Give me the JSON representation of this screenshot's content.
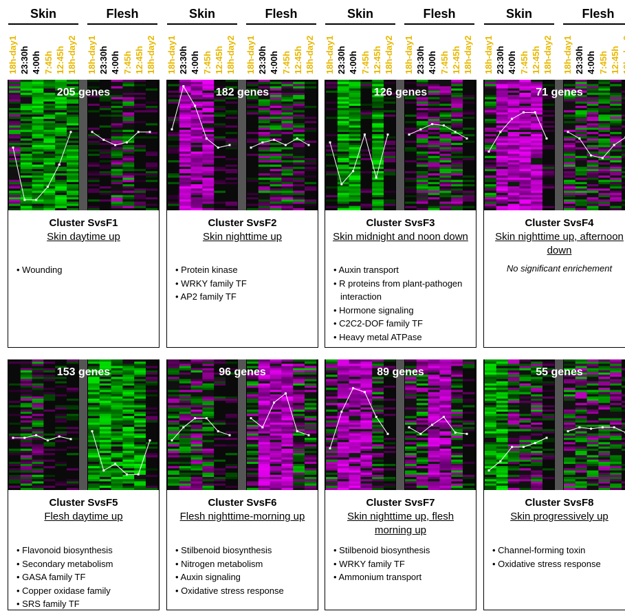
{
  "header": {
    "groups": [
      {
        "skin": "Skin",
        "flesh": "Flesh"
      },
      {
        "skin": "Skin",
        "flesh": "Flesh"
      },
      {
        "skin": "Skin",
        "flesh": "Flesh"
      },
      {
        "skin": "Skin",
        "flesh": "Flesh"
      }
    ],
    "timepoints": [
      "18h-day1",
      "23:30h",
      "4:00h",
      "7:45h",
      "12:45h",
      "18h-day2"
    ],
    "timepoint_colors": [
      "gold",
      "black",
      "black",
      "gold",
      "gold",
      "gold"
    ]
  },
  "colors": {
    "up": "#e040fb",
    "down": "#22ee22",
    "profile_line": "#ffffff",
    "separator": "#555555",
    "highlight_time": "#e8b800"
  },
  "clusters": [
    {
      "gene_count": "205 genes",
      "title": "Cluster SvsF1",
      "description": "Skin daytime up",
      "terms": [
        "Wounding"
      ],
      "note": "",
      "skin_profile": [
        0.52,
        0.92,
        0.92,
        0.82,
        0.65,
        0.4
      ],
      "flesh_profile": [
        0.4,
        0.46,
        0.5,
        0.48,
        0.4,
        0.4
      ],
      "skin_shade": [
        "mix",
        "green",
        "green",
        "green",
        "green",
        "green"
      ],
      "flesh_shade": [
        "dark",
        "dark",
        "mix",
        "mix",
        "dark",
        "dark"
      ]
    },
    {
      "gene_count": "182 genes",
      "title": "Cluster SvsF2",
      "description": "Skin nighttime up",
      "terms": [
        "Protein kinase",
        "WRKY family TF",
        "AP2 family TF"
      ],
      "note": "",
      "skin_profile": [
        0.38,
        0.05,
        0.2,
        0.45,
        0.52,
        0.5
      ],
      "flesh_profile": [
        0.52,
        0.48,
        0.46,
        0.5,
        0.45,
        0.5
      ],
      "skin_shade": [
        "dark",
        "magenta",
        "magenta",
        "magenta",
        "dark",
        "dark"
      ],
      "flesh_shade": [
        "dark",
        "mix",
        "mix",
        "mix",
        "mix",
        "dark"
      ]
    },
    {
      "gene_count": "126 genes",
      "title": "Cluster SvsF3",
      "description": "Skin midnight and noon down",
      "terms": [
        "Auxin transport",
        "R proteins from plant-pathogen interaction",
        "Hormone signaling",
        "C2C2-DOF family TF",
        "Heavy metal ATPase"
      ],
      "note": "",
      "skin_profile": [
        0.48,
        0.8,
        0.7,
        0.42,
        0.75,
        0.42
      ],
      "flesh_profile": [
        0.42,
        0.38,
        0.34,
        0.35,
        0.4,
        0.45
      ],
      "skin_shade": [
        "dark",
        "green",
        "green",
        "dark",
        "green",
        "dark"
      ],
      "flesh_shade": [
        "dark",
        "mix",
        "mix",
        "mix",
        "mix",
        "dark"
      ]
    },
    {
      "gene_count": "71 genes",
      "title": "Cluster SvsF4",
      "description": "Skin nighttime up, afternoon down",
      "terms": [],
      "note": "No significant enrichement",
      "skin_profile": [
        0.55,
        0.4,
        0.3,
        0.25,
        0.25,
        0.45
      ],
      "flesh_profile": [
        0.4,
        0.45,
        0.58,
        0.6,
        0.5,
        0.44
      ],
      "skin_shade": [
        "mix",
        "magenta",
        "magenta",
        "magenta",
        "magenta",
        "dark"
      ],
      "flesh_shade": [
        "mix",
        "mix",
        "mix",
        "mix",
        "mix",
        "dark"
      ]
    },
    {
      "gene_count": "153 genes",
      "title": "Cluster SvsF5",
      "description": "Flesh daytime up",
      "terms": [
        "Flavonoid biosynthesis",
        "Secondary metabolism",
        "GASA family TF",
        "Copper oxidase family",
        "SRS family TF"
      ],
      "note": "",
      "skin_profile": [
        0.6,
        0.6,
        0.58,
        0.62,
        0.59,
        0.61
      ],
      "flesh_profile": [
        0.55,
        0.85,
        0.8,
        0.88,
        0.88,
        0.62
      ],
      "skin_shade": [
        "dark",
        "mix",
        "mix",
        "dark",
        "dark",
        "dark"
      ],
      "flesh_shade": [
        "green",
        "green",
        "green",
        "green",
        "green",
        "dark"
      ]
    },
    {
      "gene_count": "96 genes",
      "title": "Cluster SvsF6",
      "description": "Flesh nighttime-morning up",
      "terms": [
        "Stilbenoid biosynthesis",
        "Nitrogen metabolism",
        "Auxin signaling",
        "Oxidative stress response"
      ],
      "note": "",
      "skin_profile": [
        0.62,
        0.52,
        0.45,
        0.45,
        0.55,
        0.58
      ],
      "flesh_profile": [
        0.45,
        0.52,
        0.33,
        0.26,
        0.55,
        0.58
      ],
      "skin_shade": [
        "mix",
        "mix",
        "mix",
        "mix",
        "dark",
        "dark"
      ],
      "flesh_shade": [
        "mix",
        "magenta",
        "magenta",
        "magenta",
        "mix",
        "mix"
      ]
    },
    {
      "gene_count": "89 genes",
      "title": "Cluster SvsF7",
      "description": "Skin nighttime up, flesh morning up",
      "terms": [
        "Stilbenoid biosynthesis",
        "WRKY family TF",
        "Ammonium transport"
      ],
      "note": "",
      "skin_profile": [
        0.68,
        0.4,
        0.22,
        0.25,
        0.44,
        0.57
      ],
      "flesh_profile": [
        0.52,
        0.57,
        0.5,
        0.44,
        0.56,
        0.57
      ],
      "skin_shade": [
        "mix",
        "magenta",
        "magenta",
        "magenta",
        "mix",
        "dark"
      ],
      "flesh_shade": [
        "mix",
        "mix",
        "magenta",
        "magenta",
        "mix",
        "dark"
      ]
    },
    {
      "gene_count": "55 genes",
      "title": "Cluster SvsF8",
      "description": "Skin progressively up",
      "terms": [
        "Channel-forming toxin",
        "Oxidative stress response"
      ],
      "note": "",
      "skin_profile": [
        0.85,
        0.78,
        0.67,
        0.67,
        0.64,
        0.6
      ],
      "flesh_profile": [
        0.55,
        0.52,
        0.53,
        0.52,
        0.52,
        0.56
      ],
      "skin_shade": [
        "green",
        "green",
        "mix",
        "mix",
        "mix",
        "dark"
      ],
      "flesh_shade": [
        "mix",
        "mix",
        "mix",
        "mix",
        "mix",
        "dark"
      ]
    }
  ]
}
